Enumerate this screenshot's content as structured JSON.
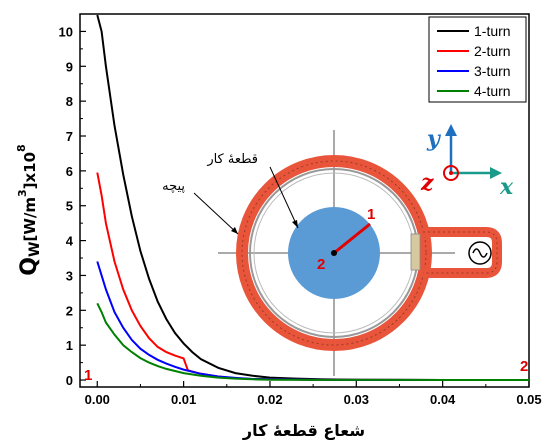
{
  "chart_data": {
    "type": "line",
    "xlabel": "شعاع قطعهٔ کار",
    "ylabel_main": "Q",
    "ylabel_sub": "W",
    "ylabel_unit": "[W/m",
    "ylabel_pow": "3",
    "ylabel_tail": "]x10",
    "ylabel_exp": "8",
    "xlim": [
      -0.002,
      0.05
    ],
    "ylim": [
      -0.2,
      10.5
    ],
    "xticks": [
      "0.00",
      "0.01",
      "0.02",
      "0.03",
      "0.04",
      "0.05"
    ],
    "xtick_values": [
      0,
      0.01,
      0.02,
      0.03,
      0.04,
      0.05
    ],
    "yticks": [
      "0",
      "1",
      "2",
      "3",
      "4",
      "5",
      "6",
      "7",
      "8",
      "9",
      "10"
    ],
    "ytick_values": [
      0,
      1,
      2,
      3,
      4,
      5,
      6,
      7,
      8,
      9,
      10
    ],
    "legend_position": "top-right",
    "series": [
      {
        "name": "1-turn",
        "color": "#000000",
        "x": [
          0,
          0.0005,
          0.001,
          0.002,
          0.003,
          0.004,
          0.005,
          0.006,
          0.007,
          0.008,
          0.009,
          0.01,
          0.011,
          0.012,
          0.014,
          0.016,
          0.018,
          0.02,
          0.023,
          0.026,
          0.03,
          0.035,
          0.04,
          0.05
        ],
        "y": [
          10.8,
          10.0,
          9.0,
          7.3,
          5.9,
          4.7,
          3.7,
          2.9,
          2.25,
          1.75,
          1.35,
          1.05,
          0.8,
          0.6,
          0.35,
          0.2,
          0.12,
          0.07,
          0.04,
          0.02,
          0.01,
          0.005,
          0.002,
          0.001
        ]
      },
      {
        "name": "2-turn",
        "color": "#ff0000",
        "x": [
          0,
          0.0005,
          0.001,
          0.002,
          0.003,
          0.004,
          0.005,
          0.006,
          0.007,
          0.008,
          0.009,
          0.01,
          0.0105,
          0.012,
          0.014,
          0.016,
          0.018,
          0.02,
          0.025,
          0.03,
          0.04,
          0.05
        ],
        "y": [
          5.95,
          5.3,
          4.5,
          3.4,
          2.6,
          2.0,
          1.55,
          1.2,
          0.95,
          0.8,
          0.7,
          0.62,
          0.28,
          0.18,
          0.1,
          0.05,
          0.03,
          0.02,
          0.01,
          0.005,
          0.002,
          0.001
        ]
      },
      {
        "name": "3-turn",
        "color": "#0000ff",
        "x": [
          0,
          0.0005,
          0.001,
          0.002,
          0.003,
          0.004,
          0.005,
          0.006,
          0.007,
          0.008,
          0.009,
          0.01,
          0.012,
          0.014,
          0.016,
          0.018,
          0.02,
          0.025,
          0.03,
          0.04,
          0.05
        ],
        "y": [
          3.4,
          3.0,
          2.6,
          1.95,
          1.5,
          1.15,
          0.9,
          0.72,
          0.58,
          0.47,
          0.38,
          0.3,
          0.18,
          0.1,
          0.06,
          0.03,
          0.02,
          0.01,
          0.005,
          0.002,
          0.001
        ]
      },
      {
        "name": "4-turn",
        "color": "#008000",
        "x": [
          0,
          0.0005,
          0.001,
          0.002,
          0.003,
          0.004,
          0.005,
          0.006,
          0.007,
          0.008,
          0.009,
          0.01,
          0.012,
          0.014,
          0.016,
          0.018,
          0.02,
          0.025,
          0.03,
          0.04,
          0.05
        ],
        "y": [
          2.2,
          1.95,
          1.65,
          1.3,
          1.0,
          0.8,
          0.63,
          0.5,
          0.4,
          0.32,
          0.26,
          0.2,
          0.12,
          0.07,
          0.04,
          0.02,
          0.01,
          0.005,
          0.003,
          0.001,
          0.001
        ]
      }
    ],
    "annotations": {
      "coil_label": "پیچه",
      "workpiece_label": "قطعهٔ کار",
      "point_1": "1",
      "point_2": "2",
      "axis_y": "y",
      "axis_z": "z",
      "axis_x": "x"
    }
  }
}
